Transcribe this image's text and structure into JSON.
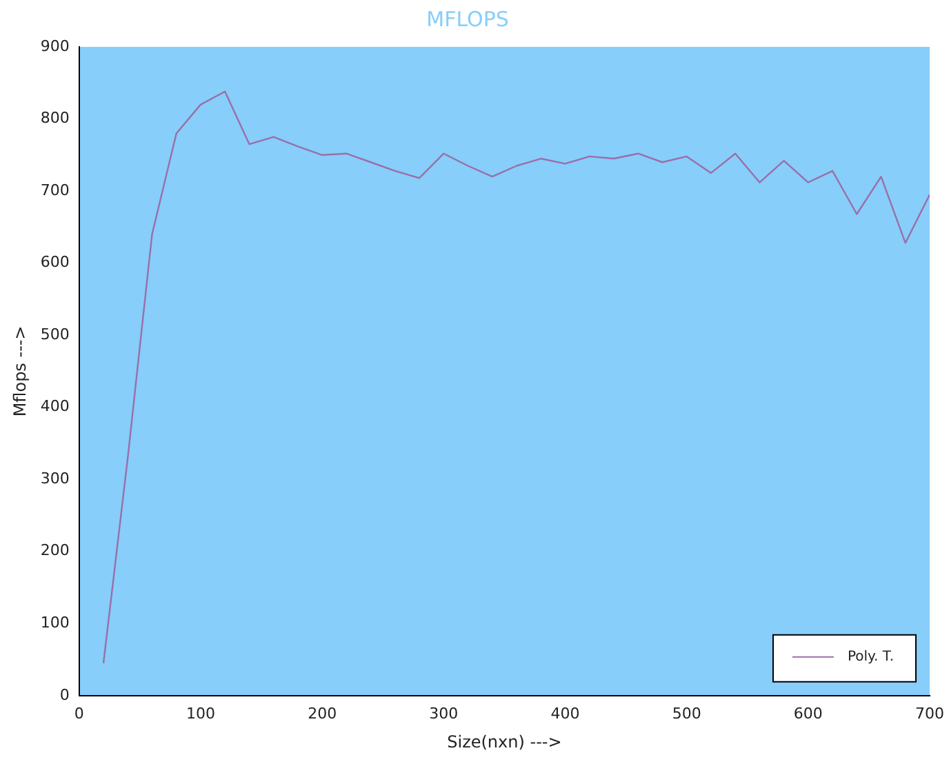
{
  "chart_data": {
    "type": "line",
    "title": "MFLOPS",
    "xlabel": "Size(nxn) --->",
    "ylabel": "Mflops --->",
    "x": [
      20,
      40,
      60,
      80,
      100,
      120,
      140,
      160,
      180,
      200,
      220,
      240,
      260,
      280,
      300,
      320,
      340,
      360,
      380,
      400,
      420,
      440,
      460,
      480,
      500,
      520,
      540,
      560,
      580,
      600,
      620,
      640,
      660,
      680,
      700
    ],
    "series": [
      {
        "name": "Poly. T.",
        "color": "#9a6fa8",
        "values": [
          45,
          330,
          640,
          780,
          820,
          838,
          765,
          775,
          762,
          750,
          752,
          740,
          728,
          718,
          752,
          735,
          720,
          735,
          745,
          738,
          748,
          745,
          752,
          740,
          748,
          725,
          752,
          712,
          742,
          712,
          728,
          668,
          720,
          628,
          695
        ]
      }
    ],
    "xlim": [
      0,
      700
    ],
    "xticks": [
      0,
      100,
      200,
      300,
      400,
      500,
      600,
      700
    ],
    "ylim": [
      0,
      900
    ],
    "yticks": [
      0,
      100,
      200,
      300,
      400,
      500,
      600,
      700,
      800,
      900
    ],
    "grid": false,
    "legend": "bottom right",
    "marker": "none",
    "line_style": "solid"
  }
}
